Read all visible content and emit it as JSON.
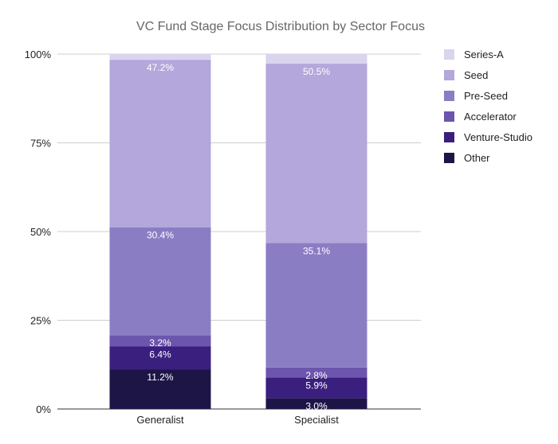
{
  "chart_data": {
    "type": "bar",
    "stacked": true,
    "title": "VC Fund Stage Focus Distribution by Sector Focus",
    "xlabel": "",
    "ylabel": "",
    "categories": [
      "Generalist",
      "Specialist"
    ],
    "ylim": [
      0,
      100
    ],
    "yticks": [
      0,
      25,
      50,
      75,
      100
    ],
    "ytick_labels": [
      "0%",
      "25%",
      "50%",
      "75%",
      "100%"
    ],
    "legend_position": "right",
    "grid": true,
    "series": [
      {
        "name": "Other",
        "color": "#1e1547",
        "values": [
          11.2,
          3.0
        ],
        "labels": [
          "11.2%",
          "3.0%"
        ]
      },
      {
        "name": "Venture-Studio",
        "color": "#3a1f7e",
        "values": [
          6.4,
          5.9
        ],
        "labels": [
          "6.4%",
          "5.9%"
        ]
      },
      {
        "name": "Accelerator",
        "color": "#6c55ac",
        "values": [
          3.2,
          2.8
        ],
        "labels": [
          "3.2%",
          "2.8%"
        ]
      },
      {
        "name": "Pre-Seed",
        "color": "#8b7dc4",
        "values": [
          30.4,
          35.1
        ],
        "labels": [
          "30.4%",
          "35.1%"
        ]
      },
      {
        "name": "Seed",
        "color": "#b3a7db",
        "values": [
          47.2,
          50.5
        ],
        "labels": [
          "47.2%",
          "50.5%"
        ]
      },
      {
        "name": "Series-A",
        "color": "#dad4ee",
        "values": [
          1.6,
          2.7
        ],
        "labels": [
          "",
          ""
        ]
      }
    ],
    "legend_order": [
      "Series-A",
      "Seed",
      "Pre-Seed",
      "Accelerator",
      "Venture-Studio",
      "Other"
    ]
  }
}
